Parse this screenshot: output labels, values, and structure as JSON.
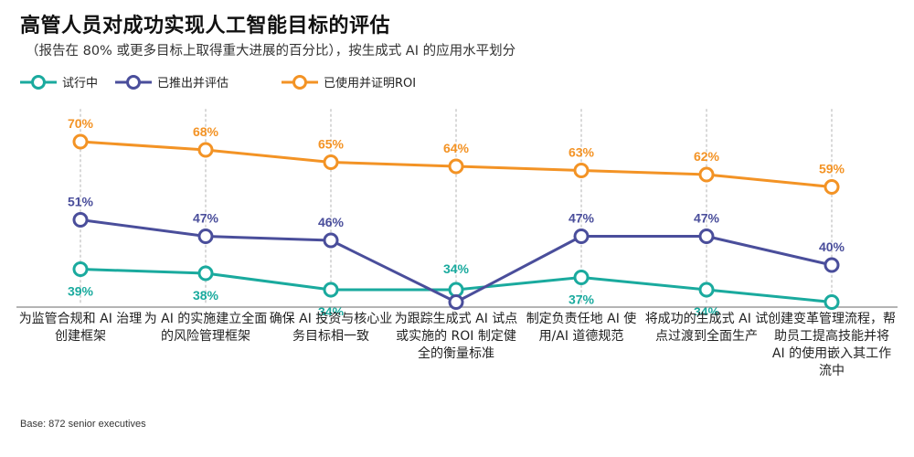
{
  "title": "高管人员对成功实现人工智能目标的评估",
  "subtitle": "（报告在 80% 或更多目标上取得重大进展的百分比），按生成式 AI 的应用水平划分",
  "footnote": "Base: 872 senior executives",
  "colors": {
    "pilot": "#1aaa9e",
    "rollout": "#4a4e9b",
    "roi": "#f39325",
    "guide": "#d8d8d8",
    "axis": "#888888"
  },
  "chart_data": {
    "type": "line",
    "title": "高管人员对成功实现人工智能目标的评估",
    "subtitle": "（报告在 80% 或更多目标上取得重大进展的百分比），按生成式 AI 的应用水平划分",
    "xlabel": "",
    "ylabel": "",
    "ylim": [
      20,
      80
    ],
    "grid": false,
    "legend_position": "top-left",
    "categories": [
      "为监管合规和 AI 治理创建框架",
      "为 AI 的实施建立全面的风险管理框架",
      "确保 AI 投资与核心业务目标相一致",
      "为跟踪生成式 AI 试点或实施的 ROI 制定健全的衡量标准",
      "制定负责任地 AI 使用/AI 道德规范",
      "将成功的生成式 AI 试点过渡到全面生产",
      "创建变革管理流程，帮助员工提高技能并将 AI 的使用嵌入其工作流中"
    ],
    "series": [
      {
        "key": "pilot",
        "name": "试行中",
        "color": "#1aaa9e",
        "values": [
          39,
          38,
          34,
          34,
          37,
          34,
          31
        ],
        "labels": [
          "39%",
          "38%",
          "34%",
          "34%",
          "37%",
          "34%",
          "31%"
        ]
      },
      {
        "key": "rollout",
        "name": "已推出并评估",
        "color": "#4a4e9b",
        "values": [
          51,
          47,
          46,
          31,
          47,
          47,
          40
        ],
        "labels": [
          "51%",
          "47%",
          "46%",
          "31%",
          "47%",
          "47%",
          "40%"
        ]
      },
      {
        "key": "roi",
        "name": "已使用并证明ROI",
        "color": "#f39325",
        "values": [
          70,
          68,
          65,
          64,
          63,
          62,
          59
        ],
        "labels": [
          "70%",
          "68%",
          "65%",
          "64%",
          "63%",
          "62%",
          "59%"
        ]
      }
    ]
  }
}
